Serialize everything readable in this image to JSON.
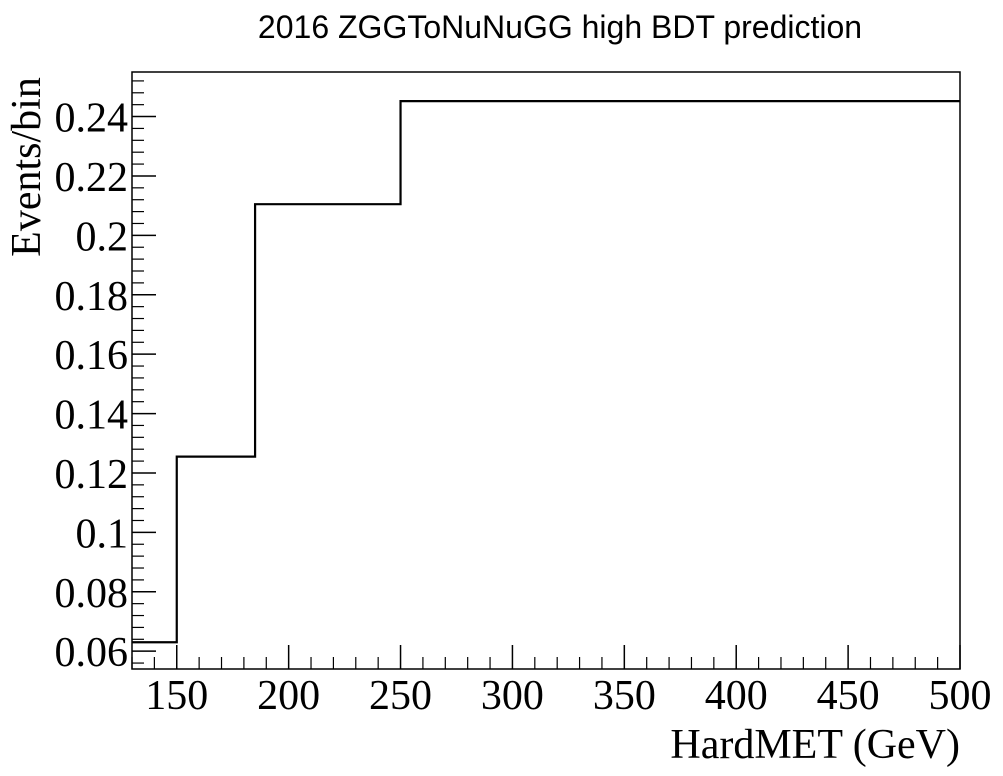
{
  "chart_data": {
    "type": "histogram-step",
    "title": "2016 ZGGToNuNuGG high BDT prediction",
    "xlabel": "HardMET (GeV)",
    "ylabel": "Events/bin",
    "xlim": [
      130,
      500
    ],
    "ylim": [
      0.054,
      0.255
    ],
    "x_ticks": [
      150,
      200,
      250,
      300,
      350,
      400,
      450,
      500
    ],
    "y_ticks": [
      0.06,
      0.08,
      0.1,
      0.12,
      0.14,
      0.16,
      0.18,
      0.2,
      0.22,
      0.24
    ],
    "x_tick_labels": [
      "150",
      "200",
      "250",
      "300",
      "350",
      "400",
      "450",
      "500"
    ],
    "y_tick_labels": [
      "0.06",
      "0.08",
      "0.1",
      "0.12",
      "0.14",
      "0.16",
      "0.18",
      "0.2",
      "0.22",
      "0.24"
    ],
    "bins": [
      {
        "low": 130,
        "high": 150,
        "value": 0.063
      },
      {
        "low": 150,
        "high": 185,
        "value": 0.1255
      },
      {
        "low": 185,
        "high": 250,
        "value": 0.2105
      },
      {
        "low": 250,
        "high": 500,
        "value": 0.2452
      }
    ],
    "line_color": "#000000",
    "grid": false
  }
}
